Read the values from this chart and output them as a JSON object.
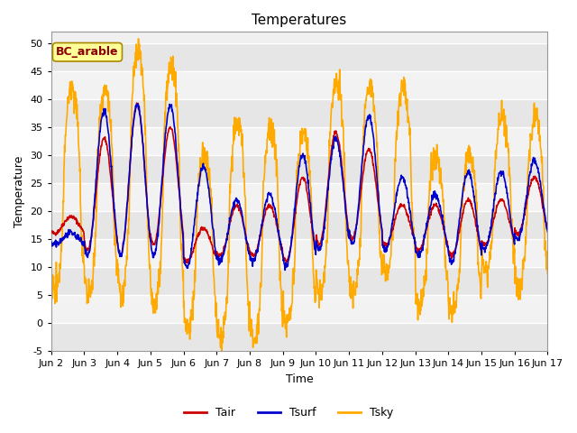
{
  "title": "Temperatures",
  "xlabel": "Time",
  "ylabel": "Temperature",
  "ylim": [
    -5,
    52
  ],
  "yticks": [
    -5,
    0,
    5,
    10,
    15,
    20,
    25,
    30,
    35,
    40,
    45,
    50
  ],
  "xtick_labels": [
    "Jun 2",
    "Jun 3",
    "Jun 4",
    "Jun 5",
    "Jun 6",
    "Jun 7",
    "Jun 8",
    "Jun 9",
    "Jun 10",
    "Jun 11",
    "Jun 12",
    "Jun 13",
    "Jun 14",
    "Jun 15",
    "Jun 16",
    "Jun 17"
  ],
  "site_label": "BC_arable",
  "fig_bg": "#ffffff",
  "plot_bg_odd": "#e8e8e8",
  "plot_bg_even": "#f5f5f5",
  "line_colors": {
    "Tair": "#cc0000",
    "Tsurf": "#0000cc",
    "Tsky": "#ffaa00"
  },
  "line_width": 1.2,
  "title_fontsize": 11,
  "label_fontsize": 9,
  "tick_fontsize": 8,
  "legend_fontsize": 9,
  "n_points_per_day": 96,
  "n_days": 15
}
